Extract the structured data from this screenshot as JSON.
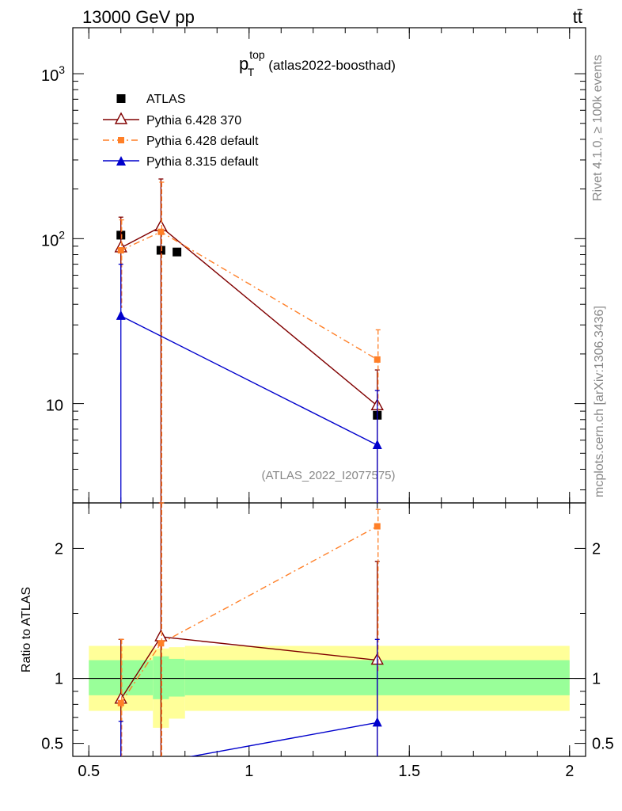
{
  "header": {
    "left": "13000 GeV pp",
    "right": "tt̄"
  },
  "side": {
    "upper": "Rivet 4.1.0, ≥ 100k events",
    "lower": "mcplots.cern.ch [arXiv:1306.3436]"
  },
  "plot_title": {
    "main": "p",
    "sup": "top",
    "sub": "T",
    "tag": "(atlas2022-boosthad)"
  },
  "watermark": "(ATLAS_2022_I2077575)",
  "ratio_label": "Ratio to ATLAS",
  "colors": {
    "data": "#000000",
    "p6_370": "#800000",
    "p6_default": "#ff7f27",
    "p8_default": "#0000cc",
    "band_outer": "#ffff99",
    "band_inner": "#99ff99"
  },
  "chart_data": {
    "type": "scatter",
    "xlim": [
      0.45,
      2.05
    ],
    "ylim_main": [
      2.5,
      1900
    ],
    "ylim_ratio": [
      0.4,
      2.35
    ],
    "y_scale_main": "log",
    "x_ticks": [
      "0.5",
      "1",
      "1.5",
      "2"
    ],
    "x_tick_values": [
      0.5,
      1,
      1.5,
      2
    ],
    "y_ticks_main": [
      {
        "value": 1000,
        "base": "10",
        "exp": "3"
      },
      {
        "value": 100,
        "base": "10",
        "exp": "2"
      },
      {
        "value": 10,
        "base": "10",
        "exp": ""
      }
    ],
    "y_ticks_ratio": [
      "0.5",
      "1",
      "2"
    ],
    "y_tick_values_ratio": [
      0.5,
      1,
      2
    ],
    "legend_position": "top-left",
    "series": [
      {
        "name": "ATLAS",
        "key": "data",
        "marker": "square",
        "x": [
          0.6,
          0.725,
          0.775,
          1.4
        ],
        "y": [
          105,
          85,
          83,
          8.5
        ]
      },
      {
        "name": "Pythia 6.428 370",
        "key": "p6_370",
        "marker": "triangle-open",
        "line": "solid",
        "x": [
          0.6,
          0.725,
          1.4
        ],
        "y": [
          88,
          118,
          9.7
        ],
        "yerr_hi": [
          135,
          230,
          16
        ],
        "yerr_lo": [
          40,
          2.5,
          2.5
        ]
      },
      {
        "name": "Pythia 6.428 default",
        "key": "p6_default",
        "marker": "square-small",
        "line": "dashdot",
        "x": [
          0.6,
          0.725,
          1.4
        ],
        "y": [
          85,
          110,
          18.5
        ],
        "yerr_hi": [
          130,
          220,
          28
        ],
        "yerr_lo": [
          38,
          2.5,
          9
        ]
      },
      {
        "name": "Pythia 8.315 default",
        "key": "p8_default",
        "marker": "triangle",
        "line": "solid",
        "x": [
          0.6,
          1.4
        ],
        "y": [
          34,
          5.6
        ],
        "yerr_hi": [
          70,
          12
        ],
        "yerr_lo": [
          2.5,
          2.5
        ]
      }
    ],
    "ratio": {
      "bands": [
        {
          "x0": 0.5,
          "x1": 0.7,
          "outer": [
            0.75,
            1.25
          ],
          "inner": [
            0.87,
            1.14
          ]
        },
        {
          "x0": 0.7,
          "x1": 0.75,
          "outer": [
            0.62,
            1.23
          ],
          "inner": [
            0.84,
            1.17
          ]
        },
        {
          "x0": 0.75,
          "x1": 0.8,
          "outer": [
            0.69,
            1.24
          ],
          "inner": [
            0.86,
            1.15
          ]
        },
        {
          "x0": 0.8,
          "x1": 2.0,
          "outer": [
            0.75,
            1.25
          ],
          "inner": [
            0.87,
            1.14
          ]
        }
      ],
      "series": [
        {
          "key": "p6_370",
          "x": [
            0.6,
            0.725,
            1.4
          ],
          "y": [
            0.84,
            1.32,
            1.14
          ],
          "yerr_hi": [
            1.3,
            2.4,
            1.9
          ],
          "yerr_lo": [
            0.35,
            0.35,
            0.35
          ]
        },
        {
          "key": "p6_default",
          "x": [
            0.6,
            0.725,
            1.4
          ],
          "y": [
            0.81,
            1.27,
            2.17
          ],
          "yerr_hi": [
            1.3,
            2.4,
            2.3
          ],
          "yerr_lo": [
            0.35,
            0.35,
            1.05
          ]
        },
        {
          "key": "p8_default",
          "x": [
            0.6,
            1.4
          ],
          "y": [
            0.3,
            0.66
          ],
          "yerr_hi": [
            0.67,
            1.3
          ],
          "yerr_lo": [
            0.3,
            0.3
          ]
        }
      ]
    }
  }
}
